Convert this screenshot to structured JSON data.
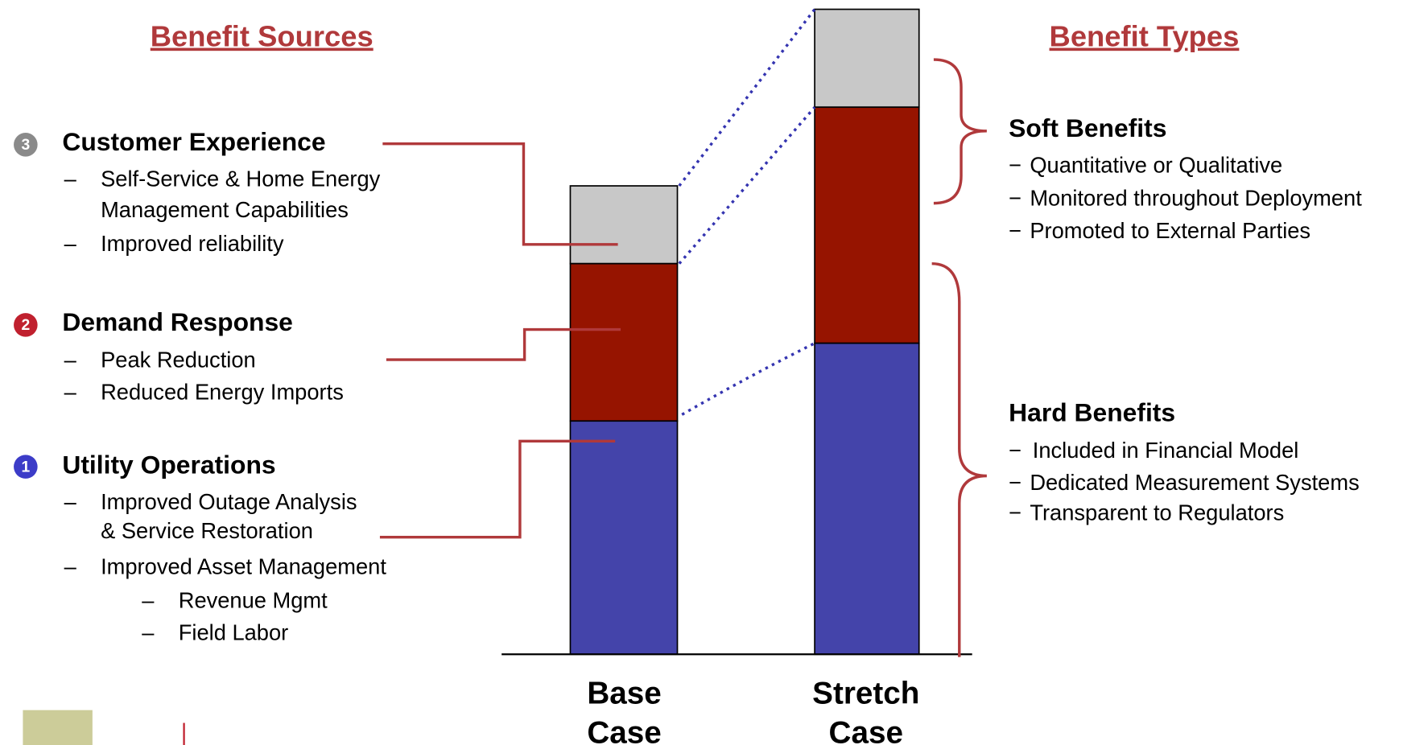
{
  "left": {
    "title": "Benefit Sources",
    "groups": [
      {
        "badge": "3",
        "heading": "Customer Experience",
        "items": [
          "Self-Service & Home Energy",
          "Management Capabilities",
          "Improved reliability"
        ]
      },
      {
        "badge": "2",
        "heading": "Demand Response",
        "items": [
          "Peak Reduction",
          "Reduced Energy Imports"
        ]
      },
      {
        "badge": "1",
        "heading": "Utility Operations",
        "items": [
          "Improved Outage Analysis",
          "& Service Restoration",
          "Improved Asset Management",
          "Revenue Mgmt",
          "Field Labor"
        ]
      }
    ]
  },
  "right": {
    "title": "Benefit Types",
    "groups": [
      {
        "heading": "Soft Benefits",
        "items": [
          "Quantitative or Qualitative",
          "Monitored throughout Deployment",
          "Promoted to External Parties"
        ]
      },
      {
        "heading": "Hard Benefits",
        "items": [
          "Included in Financial Model",
          "Dedicated Measurement Systems",
          "Transparent to Regulators"
        ]
      }
    ]
  },
  "cases": [
    [
      "Base",
      "Case"
    ],
    [
      "Stretch",
      "Case"
    ]
  ]
}
